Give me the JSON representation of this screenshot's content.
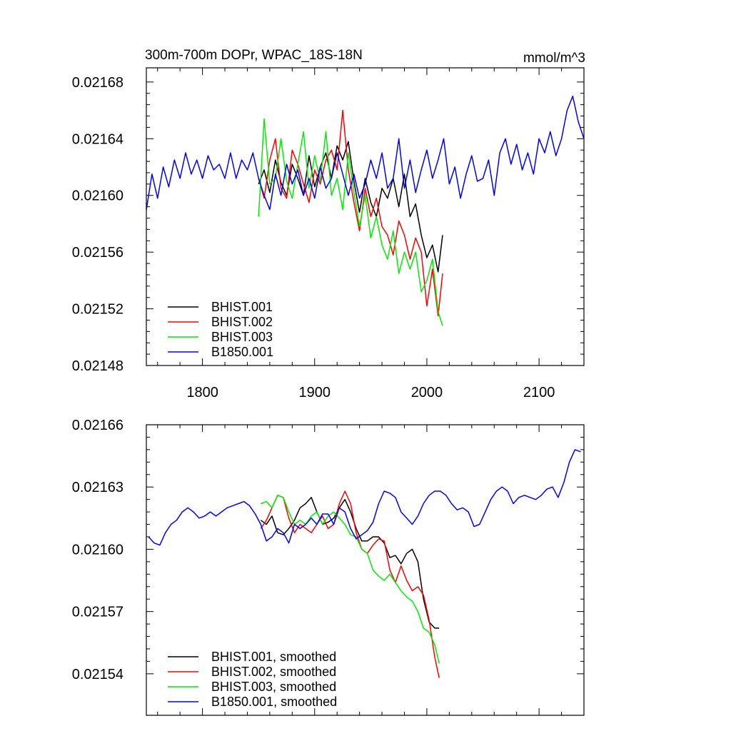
{
  "chart_data": [
    {
      "type": "line",
      "title": "300m-700m DOPr, WPAC_18S-18N",
      "units": "mmol/m^3",
      "xlim": [
        1750,
        2140
      ],
      "ylim": [
        0.02148,
        0.02169
      ],
      "xticks": [
        1800,
        1900,
        2000,
        2100
      ],
      "xtick_labels": [
        "1800",
        "1900",
        "2000",
        "2100"
      ],
      "yticks": [
        0.02148,
        0.02152,
        0.02156,
        0.0216,
        0.02164,
        0.02168
      ],
      "ytick_labels": [
        "0.02148",
        "0.02152",
        "0.02156",
        "0.02160",
        "0.02164",
        "0.02168"
      ],
      "legend_position": "bottom-left",
      "series": [
        {
          "name": "BHIST.001",
          "color": "#000000",
          "x": [
            1850,
            1855,
            1860,
            1865,
            1870,
            1875,
            1880,
            1885,
            1890,
            1895,
            1900,
            1905,
            1910,
            1915,
            1920,
            1925,
            1930,
            1935,
            1940,
            1945,
            1950,
            1955,
            1960,
            1965,
            1970,
            1975,
            1980,
            1985,
            1990,
            1995,
            2000,
            2005,
            2010,
            2014
          ],
          "y": [
            0.021608,
            0.021618,
            0.021602,
            0.021625,
            0.021609,
            0.0216,
            0.021622,
            0.021612,
            0.0216,
            0.021628,
            0.021606,
            0.02162,
            0.02163,
            0.021612,
            0.021635,
            0.021625,
            0.021638,
            0.02161,
            0.021588,
            0.021612,
            0.021595,
            0.021585,
            0.021605,
            0.021598,
            0.021612,
            0.021592,
            0.021615,
            0.021585,
            0.021594,
            0.021572,
            0.021556,
            0.021565,
            0.021546,
            0.021572
          ]
        },
        {
          "name": "BHIST.002",
          "color": "#ff0000",
          "x": [
            1850,
            1855,
            1860,
            1865,
            1870,
            1875,
            1880,
            1885,
            1890,
            1895,
            1900,
            1905,
            1910,
            1915,
            1920,
            1925,
            1930,
            1935,
            1940,
            1945,
            1950,
            1955,
            1960,
            1965,
            1970,
            1975,
            1980,
            1985,
            1990,
            1995,
            2000,
            2005,
            2010,
            2014
          ],
          "y": [
            0.021612,
            0.021598,
            0.021625,
            0.02164,
            0.021605,
            0.021598,
            0.021632,
            0.021622,
            0.021608,
            0.021595,
            0.021618,
            0.021608,
            0.021625,
            0.021632,
            0.021618,
            0.02166,
            0.021618,
            0.021595,
            0.021575,
            0.021605,
            0.021585,
            0.021598,
            0.021578,
            0.021572,
            0.021558,
            0.021582,
            0.021572,
            0.021555,
            0.02157,
            0.02156,
            0.021522,
            0.021548,
            0.021515,
            0.021545
          ]
        },
        {
          "name": "BHIST.003",
          "color": "#00ee00",
          "x": [
            1850,
            1855,
            1860,
            1865,
            1870,
            1875,
            1880,
            1885,
            1890,
            1895,
            1900,
            1905,
            1910,
            1915,
            1920,
            1925,
            1930,
            1935,
            1940,
            1945,
            1950,
            1955,
            1960,
            1965,
            1970,
            1975,
            1980,
            1985,
            1990,
            1995,
            2000,
            2005,
            2010,
            2014
          ],
          "y": [
            0.021585,
            0.021654,
            0.021608,
            0.021612,
            0.02164,
            0.02161,
            0.021598,
            0.021622,
            0.021645,
            0.021605,
            0.021628,
            0.02161,
            0.021645,
            0.0216,
            0.021612,
            0.02159,
            0.02163,
            0.021602,
            0.021578,
            0.0216,
            0.02157,
            0.021585,
            0.021565,
            0.021555,
            0.021575,
            0.021545,
            0.02156,
            0.021548,
            0.02156,
            0.021532,
            0.02154,
            0.021555,
            0.021518,
            0.021508
          ]
        },
        {
          "name": "B1850.001",
          "color": "#0000ff",
          "x": [
            1750,
            1755,
            1760,
            1765,
            1770,
            1775,
            1780,
            1785,
            1790,
            1795,
            1800,
            1805,
            1810,
            1815,
            1820,
            1825,
            1830,
            1835,
            1840,
            1845,
            1850,
            1855,
            1860,
            1865,
            1870,
            1875,
            1880,
            1885,
            1890,
            1895,
            1900,
            1905,
            1910,
            1915,
            1920,
            1925,
            1930,
            1935,
            1940,
            1945,
            1950,
            1955,
            1960,
            1965,
            1970,
            1975,
            1980,
            1985,
            1990,
            1995,
            2000,
            2005,
            2010,
            2015,
            2020,
            2025,
            2030,
            2035,
            2040,
            2045,
            2050,
            2055,
            2060,
            2065,
            2070,
            2075,
            2080,
            2085,
            2090,
            2095,
            2100,
            2105,
            2110,
            2115,
            2120,
            2125,
            2130,
            2135,
            2140
          ],
          "y": [
            0.02159,
            0.021615,
            0.021598,
            0.02162,
            0.021606,
            0.021625,
            0.021612,
            0.02163,
            0.021615,
            0.021625,
            0.021612,
            0.021628,
            0.021618,
            0.021622,
            0.021612,
            0.02163,
            0.021612,
            0.021625,
            0.021618,
            0.02163,
            0.021612,
            0.0216,
            0.02159,
            0.021615,
            0.0216,
            0.021622,
            0.021608,
            0.021618,
            0.0216,
            0.021612,
            0.021598,
            0.02162,
            0.021605,
            0.021612,
            0.02163,
            0.021615,
            0.0216,
            0.021615,
            0.021598,
            0.021608,
            0.021625,
            0.021612,
            0.02163,
            0.021605,
            0.021612,
            0.02164,
            0.021605,
            0.021625,
            0.021602,
            0.021618,
            0.021632,
            0.021612,
            0.021625,
            0.02164,
            0.021608,
            0.02162,
            0.021598,
            0.021615,
            0.021628,
            0.02161,
            0.021612,
            0.021625,
            0.0216,
            0.02163,
            0.02164,
            0.021622,
            0.021636,
            0.021618,
            0.02163,
            0.021615,
            0.02164,
            0.02163,
            0.021645,
            0.021628,
            0.02164,
            0.02166,
            0.02167,
            0.021652,
            0.02164
          ]
        }
      ]
    },
    {
      "type": "line",
      "title": "",
      "xlim": [
        1750,
        2140
      ],
      "ylim": [
        0.02152,
        0.02166
      ],
      "xticks": [
        1800,
        1900,
        2000,
        2100
      ],
      "xtick_labels": [],
      "yticks": [
        0.02154,
        0.02157,
        0.0216,
        0.02163,
        0.02166
      ],
      "ytick_labels": [
        "0.02154",
        "0.02157",
        "0.02160",
        "0.02163",
        "0.02166"
      ],
      "legend_position": "bottom-left",
      "series": [
        {
          "name": "BHIST.001, smoothed",
          "color": "#000000",
          "x": [
            1852,
            1857,
            1862,
            1867,
            1872,
            1877,
            1882,
            1887,
            1892,
            1897,
            1902,
            1907,
            1912,
            1917,
            1922,
            1927,
            1932,
            1937,
            1942,
            1947,
            1952,
            1957,
            1962,
            1967,
            1972,
            1977,
            1982,
            1987,
            1992,
            1997,
            2002,
            2007,
            2011
          ],
          "y": [
            0.021614,
            0.021612,
            0.021616,
            0.021608,
            0.021607,
            0.02161,
            0.021614,
            0.02162,
            0.021622,
            0.021625,
            0.021618,
            0.021612,
            0.021613,
            0.021615,
            0.02162,
            0.021624,
            0.021618,
            0.02161,
            0.021604,
            0.021604,
            0.021606,
            0.021606,
            0.021603,
            0.021596,
            0.021597,
            0.021593,
            0.021598,
            0.0216,
            0.021594,
            0.021576,
            0.021565,
            0.021562,
            0.021562
          ]
        },
        {
          "name": "BHIST.002, smoothed",
          "color": "#ff0000",
          "x": [
            1852,
            1857,
            1862,
            1867,
            1872,
            1877,
            1882,
            1887,
            1892,
            1897,
            1902,
            1907,
            1912,
            1917,
            1922,
            1927,
            1932,
            1937,
            1942,
            1947,
            1952,
            1957,
            1962,
            1967,
            1972,
            1977,
            1982,
            1987,
            1992,
            1997,
            2002,
            2007,
            2011
          ],
          "y": [
            0.02161,
            0.021614,
            0.02162,
            0.021626,
            0.021625,
            0.021615,
            0.021608,
            0.021612,
            0.02161,
            0.021608,
            0.021612,
            0.021616,
            0.02161,
            0.021612,
            0.021622,
            0.021628,
            0.021622,
            0.021608,
            0.0216,
            0.021598,
            0.021602,
            0.021605,
            0.021604,
            0.02159,
            0.021584,
            0.021592,
            0.021585,
            0.02158,
            0.021582,
            0.021578,
            0.021566,
            0.021548,
            0.021538
          ]
        },
        {
          "name": "BHIST.003, smoothed",
          "color": "#00ee00",
          "x": [
            1852,
            1857,
            1862,
            1867,
            1872,
            1877,
            1882,
            1887,
            1892,
            1897,
            1902,
            1907,
            1912,
            1917,
            1922,
            1927,
            1932,
            1937,
            1942,
            1947,
            1952,
            1957,
            1962,
            1967,
            1972,
            1977,
            1982,
            1987,
            1992,
            1997,
            2002,
            2007,
            2011
          ],
          "y": [
            0.021622,
            0.021623,
            0.02162,
            0.021626,
            0.021625,
            0.021618,
            0.021612,
            0.021614,
            0.021612,
            0.021616,
            0.021618,
            0.021612,
            0.021616,
            0.021618,
            0.021615,
            0.021612,
            0.021607,
            0.021606,
            0.0216,
            0.021598,
            0.02159,
            0.021587,
            0.021585,
            0.021588,
            0.021584,
            0.02158,
            0.021577,
            0.021575,
            0.02157,
            0.021562,
            0.02156,
            0.021554,
            0.021545
          ]
        },
        {
          "name": "B1850.001, smoothed",
          "color": "#0000ff",
          "x": [
            1752,
            1757,
            1762,
            1767,
            1772,
            1777,
            1782,
            1787,
            1792,
            1797,
            1802,
            1807,
            1812,
            1817,
            1822,
            1827,
            1832,
            1837,
            1842,
            1847,
            1852,
            1857,
            1862,
            1867,
            1872,
            1877,
            1882,
            1887,
            1892,
            1897,
            1902,
            1907,
            1912,
            1917,
            1922,
            1927,
            1932,
            1937,
            1942,
            1947,
            1952,
            1957,
            1962,
            1967,
            1972,
            1977,
            1982,
            1987,
            1992,
            1997,
            2002,
            2007,
            2012,
            2017,
            2022,
            2027,
            2032,
            2037,
            2042,
            2047,
            2052,
            2057,
            2062,
            2067,
            2072,
            2077,
            2082,
            2087,
            2092,
            2097,
            2102,
            2107,
            2112,
            2117,
            2122,
            2127,
            2132,
            2137
          ],
          "y": [
            0.021606,
            0.021603,
            0.021602,
            0.021608,
            0.021612,
            0.021614,
            0.021618,
            0.02162,
            0.021618,
            0.021615,
            0.021616,
            0.021618,
            0.021616,
            0.021618,
            0.02162,
            0.021621,
            0.021622,
            0.021623,
            0.021621,
            0.021617,
            0.021612,
            0.021604,
            0.021606,
            0.02161,
            0.021608,
            0.021603,
            0.021612,
            0.02161,
            0.021612,
            0.021615,
            0.021612,
            0.021617,
            0.021617,
            0.021612,
            0.02162,
            0.021618,
            0.02161,
            0.021605,
            0.021607,
            0.021609,
            0.021613,
            0.021622,
            0.021628,
            0.021627,
            0.021625,
            0.021618,
            0.021615,
            0.021612,
            0.021616,
            0.021622,
            0.021626,
            0.021628,
            0.021628,
            0.021626,
            0.021622,
            0.021619,
            0.02162,
            0.021618,
            0.021611,
            0.021612,
            0.021618,
            0.021624,
            0.021628,
            0.02163,
            0.021628,
            0.021622,
            0.021625,
            0.021626,
            0.021625,
            0.021624,
            0.021626,
            0.021629,
            0.02163,
            0.021625,
            0.021632,
            0.021642,
            0.021648,
            0.021647
          ]
        }
      ]
    }
  ]
}
